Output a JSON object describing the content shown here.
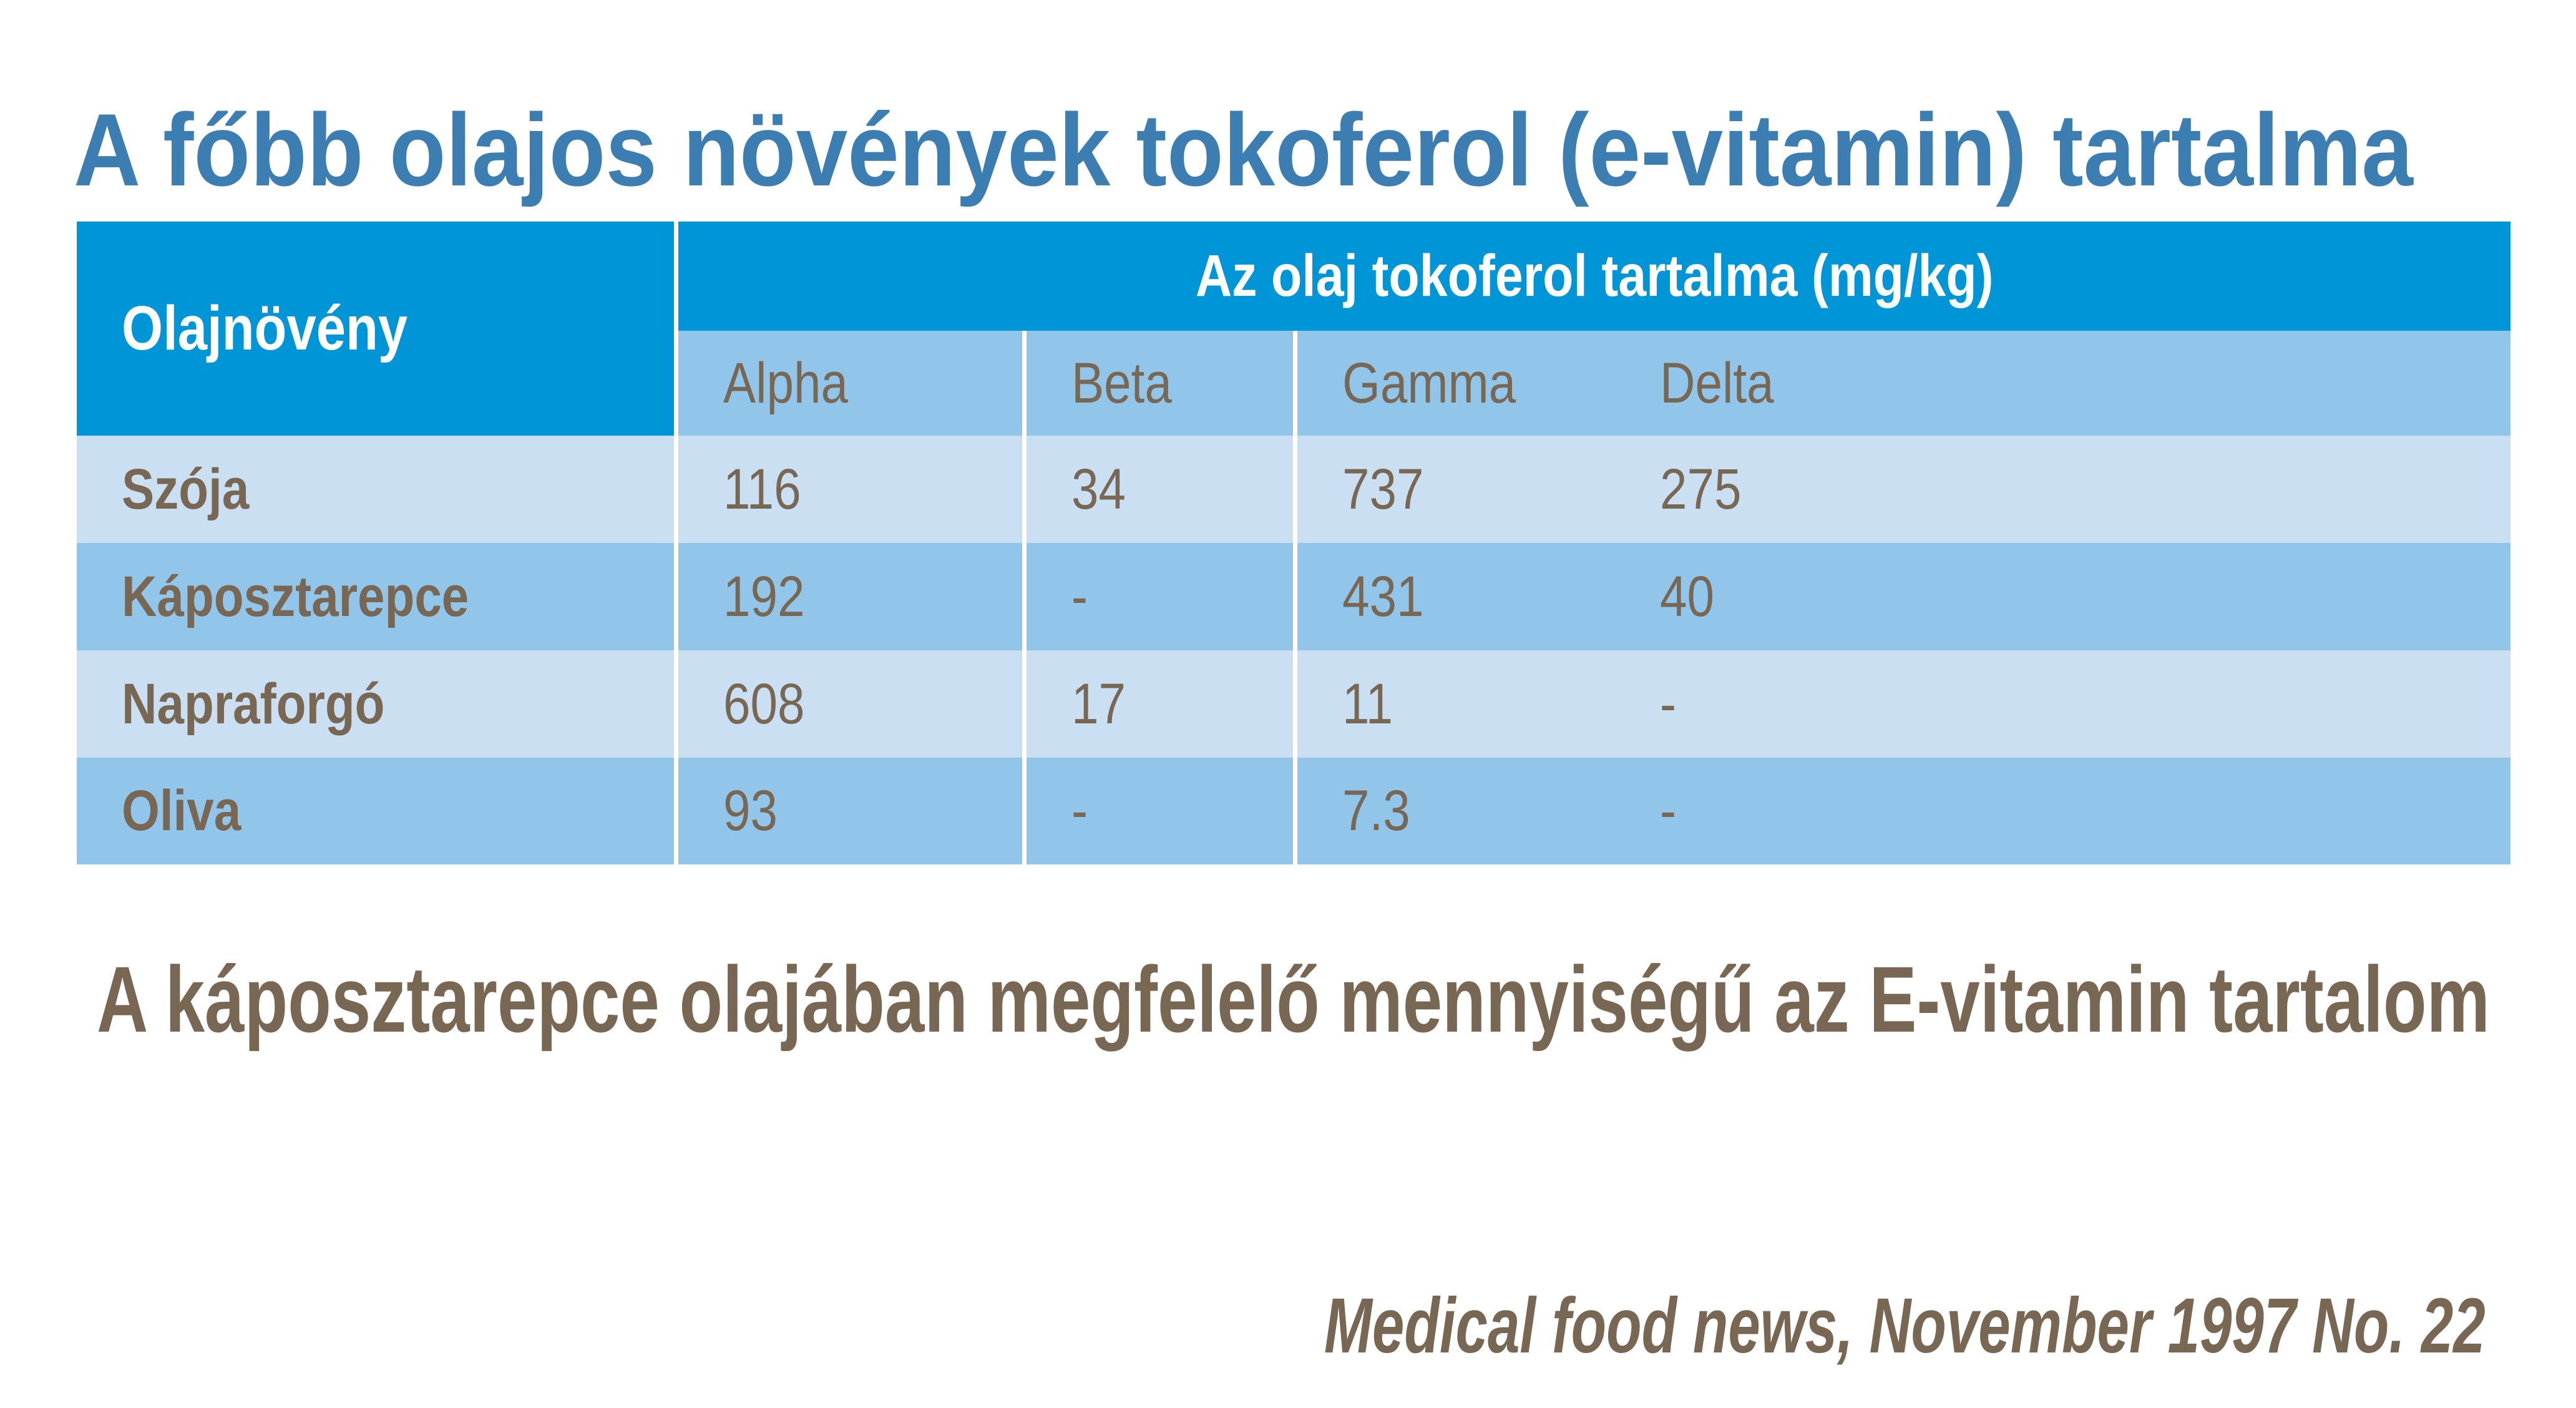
{
  "title": "A főbb olajos növények tokoferol (e-vitamin) tartalma",
  "table": {
    "row_header_label": "Olajnövény",
    "group_header": "Az olaj tokoferol tartalma (mg/kg)",
    "columns": [
      "Alpha",
      "Beta",
      "Gamma",
      "Delta"
    ],
    "rows": [
      {
        "label": "Szója",
        "alpha": "116",
        "beta": "34",
        "gamma": "737",
        "delta": "275"
      },
      {
        "label": "Káposztarepce",
        "alpha": "192",
        "beta": "-",
        "gamma": "431",
        "delta": "40"
      },
      {
        "label": "Napraforgó",
        "alpha": "608",
        "beta": "17",
        "gamma": "11",
        "delta": "-"
      },
      {
        "label": "Oliva",
        "alpha": "93",
        "beta": "-",
        "gamma": "7.3",
        "delta": "-"
      }
    ]
  },
  "caption": "A káposztarepce olajában megfelelő mennyiségű az E-vitamin tartalom",
  "source": "Medical food news, November  1997 No. 22",
  "colors": {
    "title_blue": "#3D7EB2",
    "header_blue": "#0095D6",
    "row_medium_blue": "#92C5EA",
    "row_pale_blue": "#CBDFF3",
    "text_brown": "#776753",
    "divider_white": "#FFFFFF"
  }
}
